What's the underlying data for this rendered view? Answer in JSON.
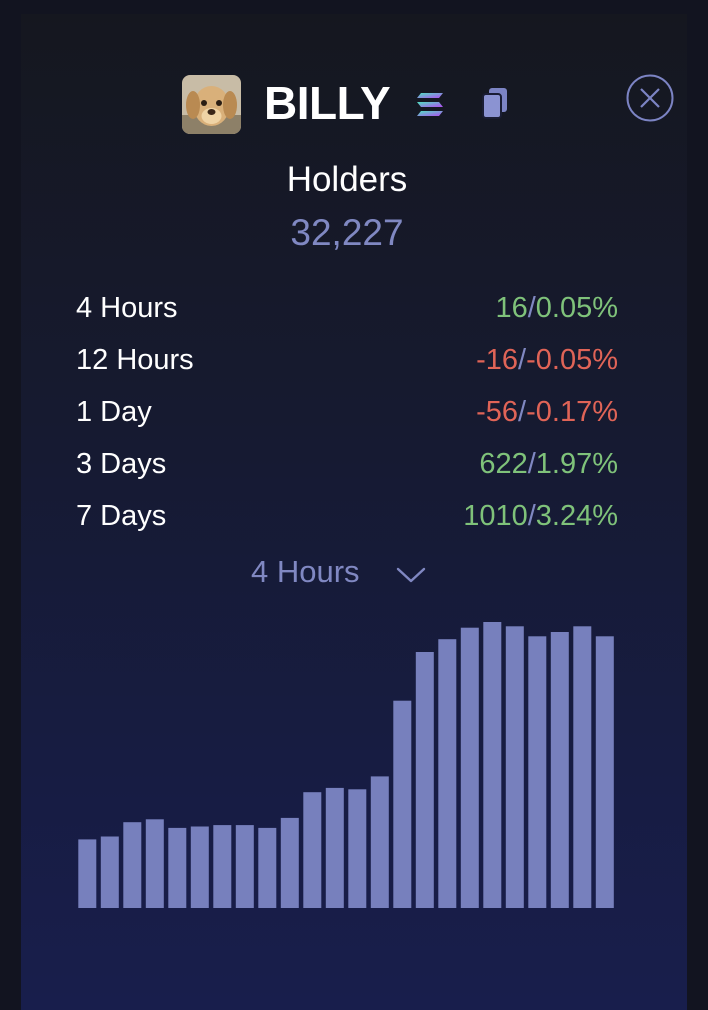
{
  "token": {
    "name": "BILLY",
    "avatar_icon": "dog-avatar",
    "chain_icon": "solana-icon",
    "copy_icon": "copy-icon",
    "close_icon": "close-icon"
  },
  "holders": {
    "label": "Holders",
    "value": "32,227"
  },
  "stats": [
    {
      "label": "4 Hours",
      "count": "16",
      "percent": "0.05%",
      "trend": "up"
    },
    {
      "label": "12 Hours",
      "count": "-16",
      "percent": "-0.05%",
      "trend": "down"
    },
    {
      "label": "1 Day",
      "count": "-56",
      "percent": "-0.17%",
      "trend": "down"
    },
    {
      "label": "3 Days",
      "count": "622",
      "percent": "1.97%",
      "trend": "up"
    },
    {
      "label": "7 Days",
      "count": "1010",
      "percent": "3.24%",
      "trend": "up"
    }
  ],
  "separator": "/",
  "selector": {
    "value": "4 Hours"
  },
  "colors": {
    "positive": "#7fc27a",
    "negative": "#e06457",
    "accent": "#8088c2",
    "bar": "#7780bd"
  },
  "chart_data": {
    "type": "bar",
    "values": [
      24,
      25,
      30,
      31,
      28,
      28.5,
      29,
      29,
      28,
      31.5,
      40.5,
      42,
      41.5,
      46,
      72.5,
      89.5,
      94,
      98,
      100,
      98.5,
      95,
      96.5,
      98.5,
      95
    ]
  }
}
